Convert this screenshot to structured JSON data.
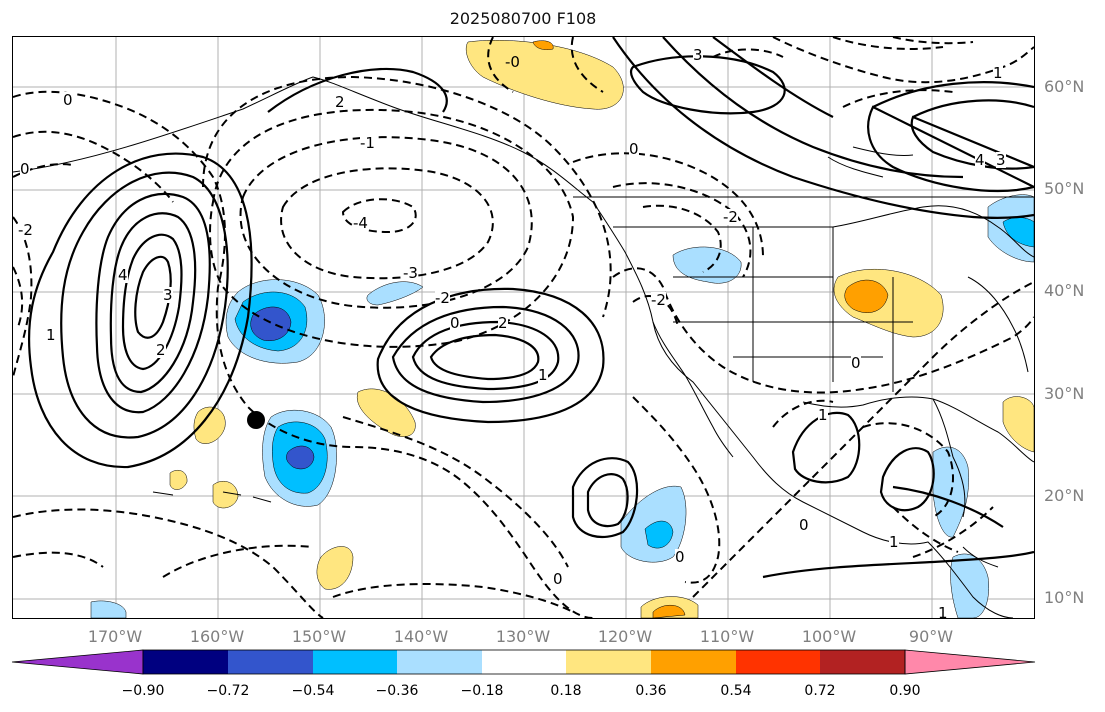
{
  "title": "2025080700 F108",
  "lat_labels": [
    "60°N",
    "50°N",
    "40°N",
    "30°N",
    "20°N",
    "10°N"
  ],
  "lon_labels": [
    "170°W",
    "160°W",
    "150°W",
    "140°W",
    "130°W",
    "120°W",
    "110°W",
    "100°W",
    "90°W"
  ],
  "colorbar": {
    "ticks": [
      "−0.90",
      "−0.72",
      "−0.54",
      "−0.36",
      "−0.18",
      "0.18",
      "0.36",
      "0.54",
      "0.72",
      "0.90"
    ],
    "colors": [
      "#9933cc",
      "#000080",
      "#3355cc",
      "#00bfff",
      "#aadfff",
      "#ffffff",
      "#ffe680",
      "#ffa000",
      "#ff3300",
      "#b22222",
      "#ff88aa"
    ]
  },
  "contour_labels": [
    {
      "text": "4",
      "kind": "positive"
    },
    {
      "text": "3",
      "kind": "positive"
    },
    {
      "text": "2",
      "kind": "positive"
    },
    {
      "text": "1",
      "kind": "positive"
    },
    {
      "text": "2",
      "kind": "positive"
    },
    {
      "text": "1",
      "kind": "positive"
    },
    {
      "text": "3",
      "kind": "positive"
    },
    {
      "text": "2",
      "kind": "positive"
    },
    {
      "text": "4",
      "kind": "positive"
    },
    {
      "text": "3",
      "kind": "positive"
    },
    {
      "text": "1",
      "kind": "positive"
    },
    {
      "text": "1",
      "kind": "positive"
    },
    {
      "text": "1",
      "kind": "positive"
    },
    {
      "text": "1",
      "kind": "positive"
    },
    {
      "text": "-4",
      "kind": "negative"
    },
    {
      "text": "-3",
      "kind": "negative"
    },
    {
      "text": "-2",
      "kind": "negative"
    },
    {
      "text": "-2",
      "kind": "negative"
    },
    {
      "text": "-2",
      "kind": "negative"
    },
    {
      "text": "-2",
      "kind": "negative"
    },
    {
      "text": "-1",
      "kind": "negative"
    },
    {
      "text": "-0",
      "kind": "negative"
    },
    {
      "text": "0",
      "kind": "zero"
    },
    {
      "text": "0",
      "kind": "zero"
    },
    {
      "text": "0",
      "kind": "zero"
    },
    {
      "text": "0",
      "kind": "zero"
    },
    {
      "text": "0",
      "kind": "zero"
    },
    {
      "text": "0",
      "kind": "zero"
    },
    {
      "text": "0",
      "kind": "zero"
    },
    {
      "text": "0",
      "kind": "zero"
    }
  ]
}
